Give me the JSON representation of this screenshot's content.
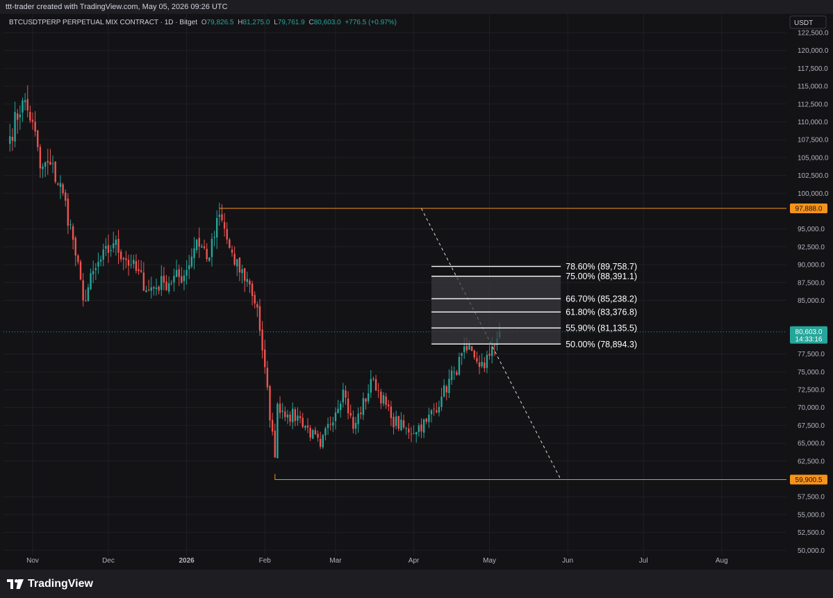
{
  "header": {
    "attribution": "ttt-trader created with TradingView.com, May 05, 2026 09:26 UTC"
  },
  "footer": {
    "logo_text": "TradingView",
    "logo_icon": "tradingview-logo-icon"
  },
  "colors": {
    "up": "#26a69a",
    "down": "#ef5350",
    "orange": "#f7931a",
    "grid": "#1f1f25",
    "fib_line": "#ffffff",
    "fib_fill": "#3a3a40"
  },
  "chart_data": {
    "type": "candlestick",
    "title": "BTCUSDTPERP PERPETUAL MIX CONTRACT · 1D · Bitget",
    "ohlc": {
      "o_label": "O",
      "o": "79,826.5",
      "h_label": "H",
      "h": "81,275.0",
      "l_label": "L",
      "l": "79,761.9",
      "c_label": "C",
      "c": "80,603.0",
      "change": "+776.5 (+0.97%)"
    },
    "currency": "USDT",
    "ylim": [
      50000,
      122500
    ],
    "y_ticks": [
      "122,500.0",
      "120,000.0",
      "117,500.0",
      "115,000.0",
      "112,500.0",
      "110,000.0",
      "107,500.0",
      "105,000.0",
      "102,500.0",
      "100,000.0",
      "95,000.0",
      "92,500.0",
      "90,000.0",
      "87,500.0",
      "85,000.0",
      "77,500.0",
      "75,000.0",
      "72,500.0",
      "70,000.0",
      "67,500.0",
      "65,000.0",
      "62,500.0",
      "57,500.0",
      "55,000.0",
      "52,500.0",
      "50,000.0"
    ],
    "x_ticks": [
      "Nov",
      "Dec",
      "2026",
      "Feb",
      "Mar",
      "Apr",
      "May",
      "Jun",
      "Jul",
      "Aug"
    ],
    "price_tags": [
      {
        "label": "97,888.0",
        "value": 97888,
        "color": "#f7931a"
      },
      {
        "label": "59,900.5",
        "value": 59900.5,
        "color": "#f7931a"
      }
    ],
    "last_price": {
      "label": "80,603.0",
      "countdown": "14:33:16",
      "value": 80603
    },
    "fib_levels": [
      {
        "label": "78.60% (89,758.7)",
        "value": 89758.7
      },
      {
        "label": "75.00% (88,391.1)",
        "value": 88391.1
      },
      {
        "label": "66.70% (85,238.2)",
        "value": 85238.2
      },
      {
        "label": "61.80% (83,376.8)",
        "value": 83376.8
      },
      {
        "label": "55.90% (81,135.5)",
        "value": 81135.5
      },
      {
        "label": "50.00% (78,894.3)",
        "value": 78894.3
      }
    ],
    "anchors": [
      {
        "month": "Oct",
        "day": 23,
        "close": 108000
      },
      {
        "month": "Oct",
        "day": 28,
        "close": 113000
      },
      {
        "month": "Nov",
        "day": 1,
        "close": 110000
      },
      {
        "month": "Nov",
        "day": 4,
        "close": 103500
      },
      {
        "month": "Nov",
        "day": 8,
        "close": 104000
      },
      {
        "month": "Nov",
        "day": 13,
        "close": 100000
      },
      {
        "month": "Nov",
        "day": 17,
        "close": 93500
      },
      {
        "month": "Nov",
        "day": 21,
        "close": 85000
      },
      {
        "month": "Nov",
        "day": 26,
        "close": 89500
      },
      {
        "month": "Dec",
        "day": 3,
        "close": 93000
      },
      {
        "month": "Dec",
        "day": 10,
        "close": 90000
      },
      {
        "month": "Dec",
        "day": 17,
        "close": 86500
      },
      {
        "month": "Dec",
        "day": 23,
        "close": 87500
      },
      {
        "month": "Dec",
        "day": 31,
        "close": 88500
      },
      {
        "month": "Jan",
        "day": 5,
        "close": 93500
      },
      {
        "month": "Jan",
        "day": 10,
        "close": 91000
      },
      {
        "month": "Jan",
        "day": 14,
        "close": 97000
      },
      {
        "month": "Jan",
        "day": 20,
        "close": 90000
      },
      {
        "month": "Jan",
        "day": 25,
        "close": 88000
      },
      {
        "month": "Jan",
        "day": 29,
        "close": 84000
      },
      {
        "month": "Jan",
        "day": 31,
        "close": 78000
      },
      {
        "month": "Feb",
        "day": 5,
        "close": 63000
      },
      {
        "month": "Feb",
        "day": 6,
        "close": 70500
      },
      {
        "month": "Feb",
        "day": 10,
        "close": 69000
      },
      {
        "month": "Feb",
        "day": 15,
        "close": 68500
      },
      {
        "month": "Feb",
        "day": 23,
        "close": 64500
      },
      {
        "month": "Mar",
        "day": 4,
        "close": 72500
      },
      {
        "month": "Mar",
        "day": 8,
        "close": 67000
      },
      {
        "month": "Mar",
        "day": 16,
        "close": 74000
      },
      {
        "month": "Mar",
        "day": 23,
        "close": 68500
      },
      {
        "month": "Mar",
        "day": 30,
        "close": 66500
      },
      {
        "month": "Apr",
        "day": 6,
        "close": 68000
      },
      {
        "month": "Apr",
        "day": 12,
        "close": 71500
      },
      {
        "month": "Apr",
        "day": 17,
        "close": 75000
      },
      {
        "month": "Apr",
        "day": 22,
        "close": 78000
      },
      {
        "month": "Apr",
        "day": 25,
        "close": 77000
      },
      {
        "month": "Apr",
        "day": 29,
        "close": 75500
      },
      {
        "month": "May",
        "day": 2,
        "close": 78500
      },
      {
        "month": "May",
        "day": 5,
        "close": 80603
      }
    ]
  }
}
